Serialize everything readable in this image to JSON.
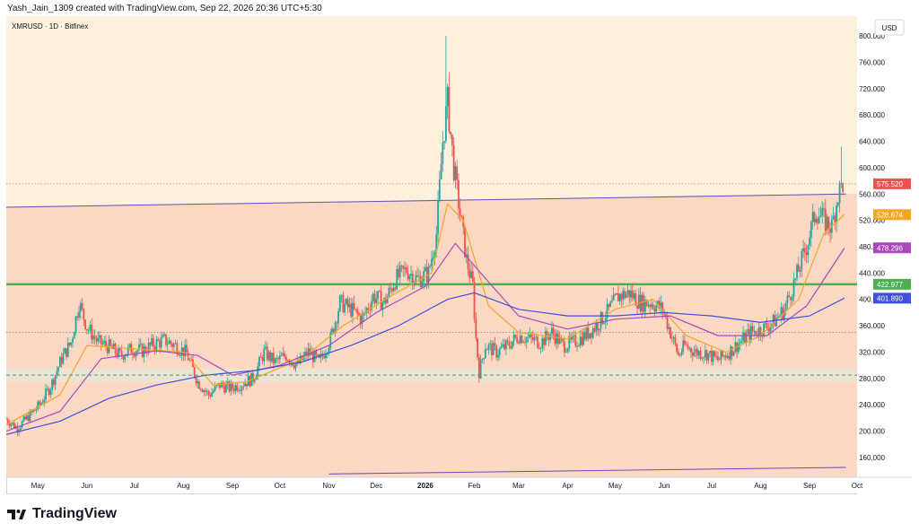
{
  "header": {
    "attribution": "Yash_Jain_1309 created with TradingView.com, Sep 22, 2026 20:36 UTC+5:30"
  },
  "symbol": {
    "label": "XMRUSD · 1D · Bitfinex"
  },
  "currency_button": {
    "label": "USD"
  },
  "footer": {
    "logo_text": "TradingView"
  },
  "colors": {
    "background": "#fdf0dc",
    "zone": "#fbd8c3",
    "support_zone": "#e6e6d8",
    "up_candle": "#26a69a",
    "down_candle": "#ef5350",
    "ema_fast": "#f5a623",
    "ema_mid": "#ab47bc",
    "ema_slow": "#3f51d8",
    "channel_line": "#5c4fb0",
    "horizontal_level": "#4caf50"
  },
  "chart_data": {
    "type": "candlestick",
    "symbol": "XMRUSD",
    "interval": "1D",
    "exchange": "Bitfinex",
    "y_range": [
      130,
      830
    ],
    "y_ticks": [
      160,
      200,
      240,
      280,
      320,
      360,
      400,
      440,
      480,
      520,
      560,
      600,
      640,
      680,
      720,
      760,
      800
    ],
    "y_tick_labels": [
      "160.000",
      "200.000",
      "240.000",
      "280.000",
      "320.000",
      "360.000",
      "400.000",
      "440.000",
      "480.000",
      "520.000",
      "560.000",
      "600.000",
      "640.000",
      "680.000",
      "720.000",
      "760.000",
      "800.000"
    ],
    "x_range": [
      "2025-04-11",
      "2026-10-01"
    ],
    "x_ticks": [
      {
        "date": "2025-05-01",
        "label": "May"
      },
      {
        "date": "2025-06-01",
        "label": "Jun"
      },
      {
        "date": "2025-07-01",
        "label": "Jul"
      },
      {
        "date": "2025-08-01",
        "label": "Aug"
      },
      {
        "date": "2025-09-01",
        "label": "Sep"
      },
      {
        "date": "2025-10-01",
        "label": "Oct"
      },
      {
        "date": "2025-11-01",
        "label": "Nov"
      },
      {
        "date": "2025-12-01",
        "label": "Dec"
      },
      {
        "date": "2026-01-01",
        "label": "2026"
      },
      {
        "date": "2026-02-01",
        "label": "Feb"
      },
      {
        "date": "2026-03-01",
        "label": "Mar"
      },
      {
        "date": "2026-04-01",
        "label": "Apr"
      },
      {
        "date": "2026-05-01",
        "label": "May"
      },
      {
        "date": "2026-06-01",
        "label": "Jun"
      },
      {
        "date": "2026-07-01",
        "label": "Jul"
      },
      {
        "date": "2026-08-01",
        "label": "Aug"
      },
      {
        "date": "2026-09-01",
        "label": "Sep"
      },
      {
        "date": "2026-10-01",
        "label": "Oct"
      }
    ],
    "price_path": [
      [
        "2025-04-11",
        218
      ],
      [
        "2025-04-18",
        205
      ],
      [
        "2025-04-25",
        222
      ],
      [
        "2025-05-02",
        240
      ],
      [
        "2025-05-09",
        268
      ],
      [
        "2025-05-16",
        310
      ],
      [
        "2025-05-22",
        335
      ],
      [
        "2025-05-27",
        395
      ],
      [
        "2025-06-01",
        358
      ],
      [
        "2025-06-08",
        335
      ],
      [
        "2025-06-15",
        328
      ],
      [
        "2025-06-22",
        315
      ],
      [
        "2025-06-29",
        325
      ],
      [
        "2025-07-06",
        322
      ],
      [
        "2025-07-13",
        332
      ],
      [
        "2025-07-20",
        338
      ],
      [
        "2025-07-27",
        330
      ],
      [
        "2025-08-03",
        318
      ],
      [
        "2025-08-10",
        275
      ],
      [
        "2025-08-17",
        255
      ],
      [
        "2025-08-24",
        270
      ],
      [
        "2025-08-31",
        265
      ],
      [
        "2025-09-07",
        272
      ],
      [
        "2025-09-14",
        280
      ],
      [
        "2025-09-21",
        320
      ],
      [
        "2025-09-28",
        305
      ],
      [
        "2025-10-05",
        315
      ],
      [
        "2025-10-12",
        300
      ],
      [
        "2025-10-19",
        320
      ],
      [
        "2025-10-26",
        305
      ],
      [
        "2025-11-02",
        340
      ],
      [
        "2025-11-08",
        395
      ],
      [
        "2025-11-15",
        385
      ],
      [
        "2025-11-22",
        370
      ],
      [
        "2025-11-29",
        405
      ],
      [
        "2025-12-06",
        395
      ],
      [
        "2025-12-13",
        430
      ],
      [
        "2025-12-20",
        445
      ],
      [
        "2025-12-27",
        430
      ],
      [
        "2026-01-03",
        440
      ],
      [
        "2026-01-08",
        500
      ],
      [
        "2026-01-12",
        640
      ],
      [
        "2026-01-15",
        700
      ],
      [
        "2026-01-19",
        600
      ],
      [
        "2026-01-23",
        530
      ],
      [
        "2026-01-27",
        460
      ],
      [
        "2026-01-31",
        420
      ],
      [
        "2026-02-02",
        340
      ],
      [
        "2026-02-04",
        290
      ],
      [
        "2026-02-08",
        330
      ],
      [
        "2026-02-15",
        320
      ],
      [
        "2026-02-22",
        330
      ],
      [
        "2026-03-01",
        345
      ],
      [
        "2026-03-08",
        340
      ],
      [
        "2026-03-15",
        335
      ],
      [
        "2026-03-22",
        350
      ],
      [
        "2026-03-29",
        330
      ],
      [
        "2026-04-05",
        335
      ],
      [
        "2026-04-12",
        345
      ],
      [
        "2026-04-19",
        360
      ],
      [
        "2026-04-26",
        380
      ],
      [
        "2026-05-03",
        405
      ],
      [
        "2026-05-10",
        410
      ],
      [
        "2026-05-17",
        395
      ],
      [
        "2026-05-24",
        395
      ],
      [
        "2026-05-31",
        385
      ],
      [
        "2026-06-05",
        350
      ],
      [
        "2026-06-10",
        315
      ],
      [
        "2026-06-14",
        330
      ],
      [
        "2026-06-21",
        320
      ],
      [
        "2026-06-28",
        318
      ],
      [
        "2026-07-05",
        308
      ],
      [
        "2026-07-12",
        320
      ],
      [
        "2026-07-19",
        335
      ],
      [
        "2026-07-26",
        350
      ],
      [
        "2026-08-02",
        355
      ],
      [
        "2026-08-09",
        365
      ],
      [
        "2026-08-16",
        385
      ],
      [
        "2026-08-23",
        430
      ],
      [
        "2026-08-30",
        480
      ],
      [
        "2026-09-05",
        535
      ],
      [
        "2026-09-10",
        520
      ],
      [
        "2026-09-15",
        510
      ],
      [
        "2026-09-19",
        560
      ],
      [
        "2026-09-22",
        576
      ]
    ],
    "spikes": [
      {
        "date": "2026-01-14",
        "high": 800
      },
      {
        "date": "2026-01-16",
        "high": 745
      },
      {
        "date": "2026-09-21",
        "high": 632
      }
    ],
    "moving_averages": [
      {
        "color_key": "ema_fast",
        "points": [
          [
            "2025-04-11",
            210
          ],
          [
            "2025-05-15",
            255
          ],
          [
            "2025-06-01",
            330
          ],
          [
            "2025-07-01",
            325
          ],
          [
            "2025-08-01",
            320
          ],
          [
            "2025-08-20",
            270
          ],
          [
            "2025-09-10",
            275
          ],
          [
            "2025-10-15",
            310
          ],
          [
            "2025-11-10",
            360
          ],
          [
            "2025-12-10",
            405
          ],
          [
            "2026-01-05",
            440
          ],
          [
            "2026-01-15",
            545
          ],
          [
            "2026-01-25",
            520
          ],
          [
            "2026-02-10",
            390
          ],
          [
            "2026-03-01",
            350
          ],
          [
            "2026-04-01",
            340
          ],
          [
            "2026-05-01",
            385
          ],
          [
            "2026-05-25",
            400
          ],
          [
            "2026-06-15",
            345
          ],
          [
            "2026-07-10",
            320
          ],
          [
            "2026-08-01",
            345
          ],
          [
            "2026-08-25",
            400
          ],
          [
            "2026-09-10",
            500
          ],
          [
            "2026-09-23",
            529
          ]
        ]
      },
      {
        "color_key": "ema_mid",
        "points": [
          [
            "2025-04-11",
            200
          ],
          [
            "2025-05-15",
            230
          ],
          [
            "2025-06-10",
            310
          ],
          [
            "2025-07-15",
            322
          ],
          [
            "2025-08-10",
            315
          ],
          [
            "2025-09-01",
            285
          ],
          [
            "2025-10-01",
            300
          ],
          [
            "2025-11-01",
            330
          ],
          [
            "2025-12-01",
            380
          ],
          [
            "2026-01-01",
            420
          ],
          [
            "2026-01-20",
            485
          ],
          [
            "2026-02-05",
            440
          ],
          [
            "2026-03-01",
            375
          ],
          [
            "2026-04-01",
            355
          ],
          [
            "2026-05-01",
            370
          ],
          [
            "2026-06-05",
            375
          ],
          [
            "2026-07-05",
            345
          ],
          [
            "2026-08-05",
            345
          ],
          [
            "2026-08-30",
            390
          ],
          [
            "2026-09-23",
            478
          ]
        ]
      },
      {
        "color_key": "ema_slow",
        "points": [
          [
            "2025-04-11",
            195
          ],
          [
            "2025-05-15",
            215
          ],
          [
            "2025-06-15",
            250
          ],
          [
            "2025-07-15",
            270
          ],
          [
            "2025-08-15",
            285
          ],
          [
            "2025-09-15",
            292
          ],
          [
            "2025-10-15",
            305
          ],
          [
            "2025-11-15",
            330
          ],
          [
            "2025-12-15",
            360
          ],
          [
            "2026-01-15",
            400
          ],
          [
            "2026-02-01",
            410
          ],
          [
            "2026-03-01",
            385
          ],
          [
            "2026-04-01",
            375
          ],
          [
            "2026-05-01",
            375
          ],
          [
            "2026-06-01",
            380
          ],
          [
            "2026-07-01",
            375
          ],
          [
            "2026-08-01",
            365
          ],
          [
            "2026-09-01",
            375
          ],
          [
            "2026-09-23",
            402
          ]
        ]
      }
    ],
    "horizontal_levels": [
      {
        "price": 422.977,
        "label": "422.977",
        "color_key": "horizontal_level",
        "style": "solid"
      },
      {
        "price": 575.52,
        "style": "dotted"
      },
      {
        "price": 350,
        "style": "dotted"
      }
    ],
    "channel": {
      "upper": [
        [
          "2025-04-11",
          540
        ],
        [
          "2026-09-24",
          560
        ]
      ],
      "lower": [
        [
          "2025-11-01",
          135
        ],
        [
          "2026-09-24",
          145
        ]
      ]
    },
    "support_zone": {
      "low": 275,
      "high": 295
    },
    "price_labels": [
      {
        "price": 575.52,
        "label": "575.520",
        "color_key": "down_candle"
      },
      {
        "price": 528.674,
        "label": "528.674",
        "color_key": "ema_fast"
      },
      {
        "price": 478.296,
        "label": "478.296",
        "color_key": "ema_mid"
      },
      {
        "price": 422.977,
        "label": "422.977",
        "color_key": "horizontal_level"
      },
      {
        "price": 401.89,
        "label": "401.890",
        "color_key": "ema_slow"
      }
    ]
  }
}
